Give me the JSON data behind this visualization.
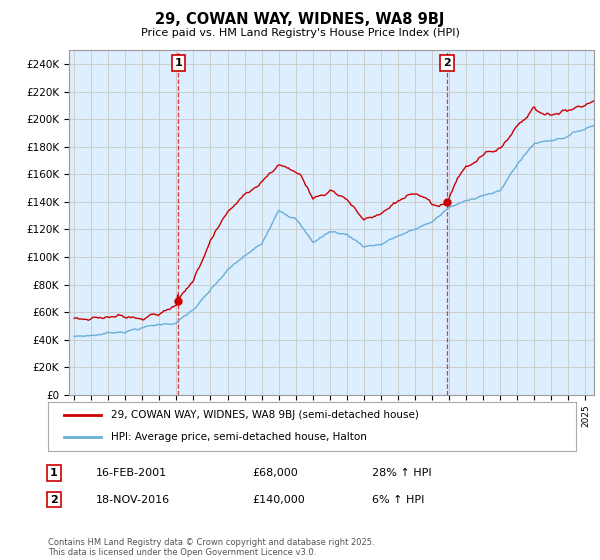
{
  "title": "29, COWAN WAY, WIDNES, WA8 9BJ",
  "subtitle": "Price paid vs. HM Land Registry's House Price Index (HPI)",
  "ylabel_ticks": [
    "£0",
    "£20K",
    "£40K",
    "£60K",
    "£80K",
    "£100K",
    "£120K",
    "£140K",
    "£160K",
    "£180K",
    "£200K",
    "£220K",
    "£240K"
  ],
  "ytick_values": [
    0,
    20000,
    40000,
    60000,
    80000,
    100000,
    120000,
    140000,
    160000,
    180000,
    200000,
    220000,
    240000
  ],
  "ylim": [
    0,
    250000
  ],
  "xlim_start": 1994.7,
  "xlim_end": 2025.5,
  "sale1_date": 2001.12,
  "sale1_price": 68000,
  "sale2_date": 2016.88,
  "sale2_price": 140000,
  "legend_line1": "29, COWAN WAY, WIDNES, WA8 9BJ (semi-detached house)",
  "legend_line2": "HPI: Average price, semi-detached house, Halton",
  "footer": "Contains HM Land Registry data © Crown copyright and database right 2025.\nThis data is licensed under the Open Government Licence v3.0.",
  "hpi_color": "#6baed6",
  "price_color": "#cc0000",
  "vline_color": "#cc0000",
  "grid_color": "#cccccc",
  "plot_bg_color": "#ddeeff",
  "label1_box_color": "#cc0000",
  "num1_date": "16-FEB-2001",
  "num1_price": "£68,000",
  "num1_hpi": "28% ↑ HPI",
  "num2_date": "18-NOV-2016",
  "num2_price": "£140,000",
  "num2_hpi": "6% ↑ HPI"
}
